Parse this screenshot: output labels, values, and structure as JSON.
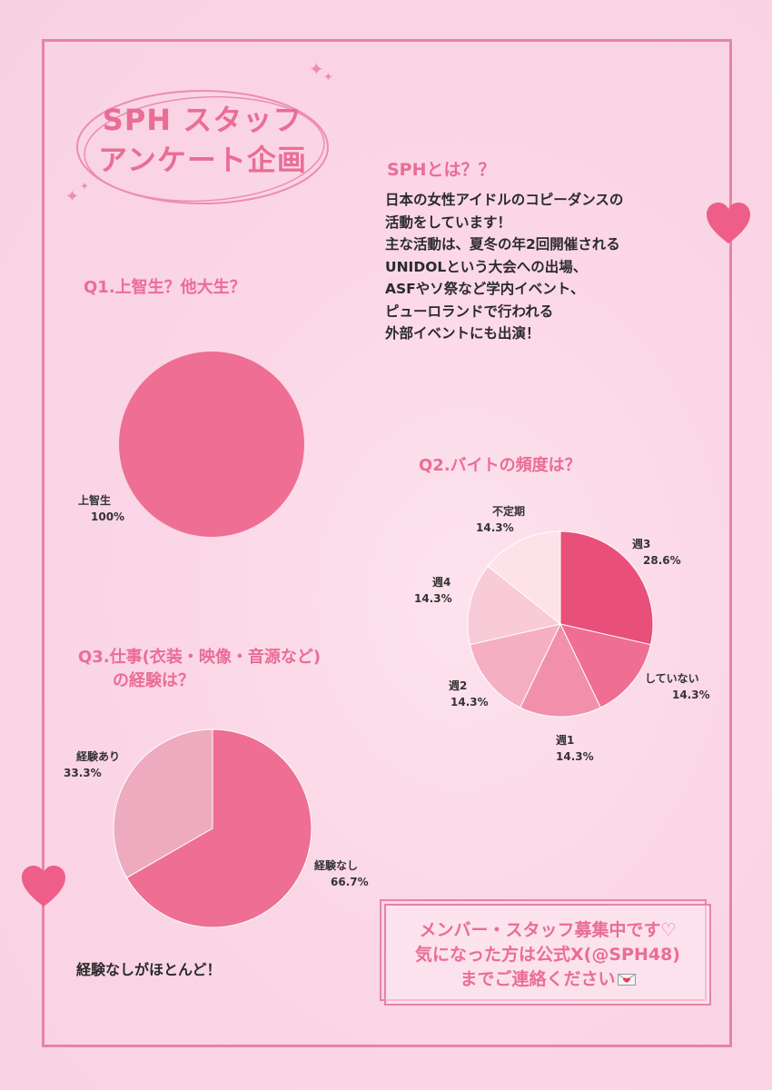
{
  "title_lines": [
    "SPH スタッフ",
    "アンケート企画"
  ],
  "about": {
    "heading": "SPHとは？？",
    "lines": [
      "日本の女性アイドルのコピーダンスの",
      "活動をしています！",
      "主な活動は、夏冬の年2回開催される",
      "UNIDOLという大会への出場、",
      "ASFやソ祭など学内イベント、",
      "ピューロランドで行われる",
      "外部イベントにも出演！"
    ]
  },
  "note": "経験なしがほとんど！",
  "recruit": {
    "lines": [
      "メンバー・スタッフ募集中です♡",
      "気になった方は公式X(@SPH48)",
      "までご連絡ください"
    ],
    "icon": "love-letter-icon"
  },
  "colors": {
    "accent": "#ea6d95",
    "frame": "#e783a5"
  },
  "chart_data": [
    {
      "type": "pie",
      "title": "Q1.上智生？他大生？",
      "categories": [
        "上智生"
      ],
      "values": [
        100
      ],
      "labels": [
        "100%"
      ],
      "colors": [
        "#ee6f93"
      ]
    },
    {
      "type": "pie",
      "title": "Q2.バイトの頻度は？",
      "categories": [
        "週3",
        "していない",
        "週1",
        "週2",
        "週4",
        "不定期"
      ],
      "values": [
        28.6,
        14.3,
        14.3,
        14.3,
        14.3,
        14.3
      ],
      "labels": [
        "28.6%",
        "14.3%",
        "14.3%",
        "14.3%",
        "14.3%",
        "14.3%"
      ],
      "colors": [
        "#e95079",
        "#ef6e92",
        "#f290ab",
        "#f6aec2",
        "#f9cad7",
        "#fde2ea"
      ]
    },
    {
      "type": "pie",
      "title_lines": [
        "Q3.仕事(衣装・映像・音源など)",
        "の経験は？"
      ],
      "categories": [
        "経験なし",
        "経験あり"
      ],
      "values": [
        66.7,
        33.3
      ],
      "labels": [
        "66.7%",
        "33.3%"
      ],
      "colors": [
        "#ee6f93",
        "#eeabbf"
      ]
    }
  ]
}
